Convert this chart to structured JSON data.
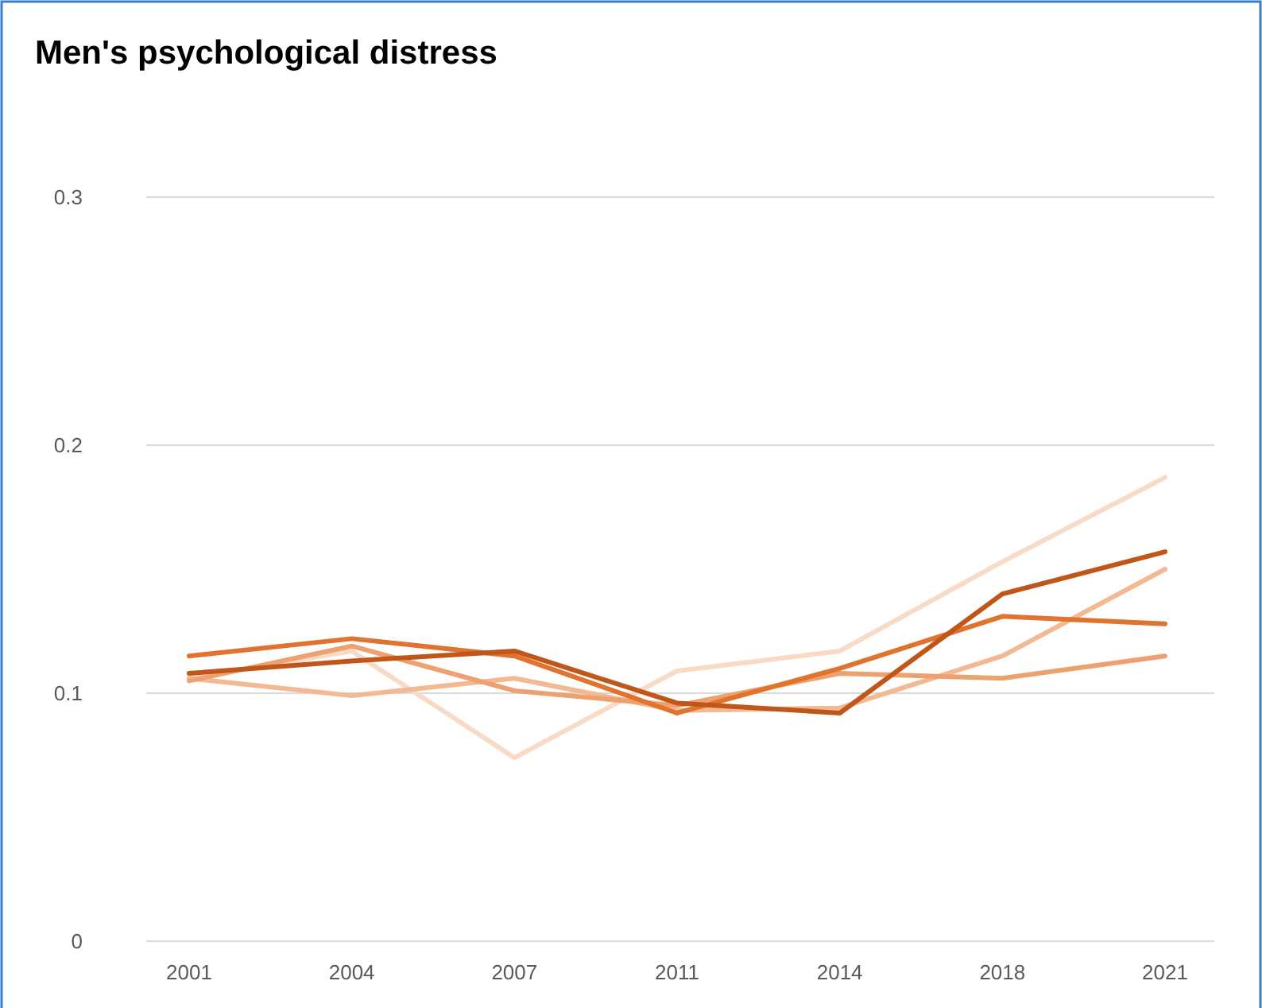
{
  "chart_data": {
    "type": "line",
    "title": "Men's psychological distress",
    "categories": [
      "2001",
      "2004",
      "2007",
      "2011",
      "2014",
      "2018",
      "2021"
    ],
    "series": [
      {
        "color": "#f8dac6",
        "values": [
          0.106,
          0.117,
          0.074,
          0.109,
          0.117,
          0.153,
          0.187
        ]
      },
      {
        "color": "#f2b993",
        "values": [
          0.106,
          0.099,
          0.106,
          0.093,
          0.094,
          0.115,
          0.15
        ]
      },
      {
        "color": "#eda070",
        "values": [
          0.105,
          0.119,
          0.101,
          0.095,
          0.108,
          0.106,
          0.115
        ]
      },
      {
        "color": "#e0732e",
        "values": [
          0.115,
          0.122,
          0.115,
          0.092,
          0.11,
          0.131,
          0.128
        ]
      },
      {
        "color": "#c0561a",
        "values": [
          0.108,
          0.113,
          0.117,
          0.096,
          0.092,
          0.14,
          0.157
        ]
      }
    ],
    "ylim": [
      0,
      0.3
    ],
    "yticks": [
      0,
      0.1,
      0.2,
      0.3
    ],
    "grid": "y",
    "marker": "none",
    "line_style": "solid"
  }
}
